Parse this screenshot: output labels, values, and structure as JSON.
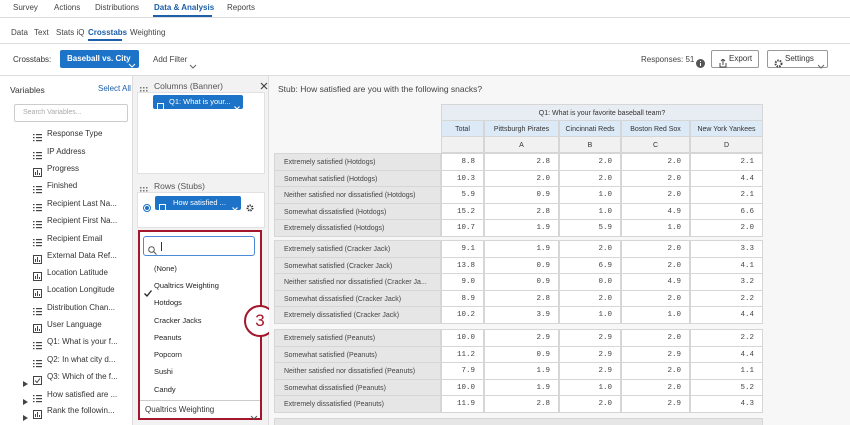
{
  "nav": {
    "tabs": [
      "Survey",
      "Actions",
      "Distributions",
      "Data & Analysis",
      "Reports"
    ]
  },
  "subnav": {
    "tabs": [
      "Data",
      "Text",
      "Stats iQ",
      "Crosstabs",
      "Weighting"
    ]
  },
  "toolbar": {
    "label": "Crosstabs:",
    "crosstab": "Baseball vs. City",
    "add_filter": "Add Filter",
    "responses": "Responses: 51",
    "export": "Export",
    "settings": "Settings"
  },
  "variables": {
    "title": "Variables",
    "select_all": "Select All",
    "search_placeholder": "Search Variables...",
    "items": [
      "Response Type",
      "IP Address",
      "Progress",
      "Finished",
      "Recipient Last Na...",
      "Recipient First Na...",
      "Recipient Email",
      "External Data Ref...",
      "Location Latitude",
      "Location Longitude",
      "Distribution Chan...",
      "User Language",
      "Q1: What is your f...",
      "Q2: In what city d...",
      "Q3: Which of the f...",
      "How satisfied are ...",
      "Rank the followin..."
    ]
  },
  "columns": {
    "title": "Columns (Banner)",
    "chip": "Q1: What is your..."
  },
  "rows": {
    "title": "Rows (Stubs)",
    "chip": "How satisfied ..."
  },
  "weight_dropdown": {
    "options": [
      "(None)",
      "Qualtrics Weighting",
      "Hotdogs",
      "Cracker Jacks",
      "Peanuts",
      "Popcorn",
      "Sushi",
      "Candy"
    ],
    "selected": "Qualtrics Weighting"
  },
  "step": "3",
  "table": {
    "stub": "Stub: How satisfied are you with the following snacks?",
    "banner": "Q1: What is your favorite baseball team?",
    "columns": [
      "Total",
      "Pittsburgh Pirates",
      "Cincinnati Reds",
      "Boston Red Sox",
      "New York Yankees"
    ],
    "letters": [
      "A",
      "B",
      "C",
      "D"
    ],
    "groups": [
      [
        {
          "label": "Extremely satisfied (Hotdogs)",
          "values": [
            "8.8",
            "2.8",
            "2.0",
            "2.0",
            "2.1"
          ]
        },
        {
          "label": "Somewhat satisfied (Hotdogs)",
          "values": [
            "10.3",
            "2.0",
            "2.0",
            "2.0",
            "4.4"
          ]
        },
        {
          "label": "Neither satisfied nor dissatisfied (Hotdogs)",
          "values": [
            "5.9",
            "0.9",
            "1.0",
            "2.0",
            "2.1"
          ]
        },
        {
          "label": "Somewhat dissatisfied (Hotdogs)",
          "values": [
            "15.2",
            "2.8",
            "1.0",
            "4.9",
            "6.6"
          ]
        },
        {
          "label": "Extremely dissatisfied (Hotdogs)",
          "values": [
            "10.7",
            "1.9",
            "5.9",
            "1.0",
            "2.0"
          ]
        }
      ],
      [
        {
          "label": "Extremely satisfied (Cracker Jack)",
          "values": [
            "9.1",
            "1.9",
            "2.0",
            "2.0",
            "3.3"
          ]
        },
        {
          "label": "Somewhat satisfied (Cracker Jack)",
          "values": [
            "13.8",
            "0.9",
            "6.9",
            "2.0",
            "4.1"
          ]
        },
        {
          "label": "Neither satisfied nor dissatisfied (Cracker Ja...",
          "values": [
            "9.0",
            "0.9",
            "0.0",
            "4.9",
            "3.2"
          ]
        },
        {
          "label": "Somewhat dissatisfied (Cracker Jack)",
          "values": [
            "8.9",
            "2.8",
            "2.0",
            "2.0",
            "2.2"
          ]
        },
        {
          "label": "Extremely dissatisfied (Cracker Jack)",
          "values": [
            "10.2",
            "3.9",
            "1.0",
            "1.0",
            "4.4"
          ]
        }
      ],
      [
        {
          "label": "Extremely satisfied (Peanuts)",
          "values": [
            "10.0",
            "2.9",
            "2.9",
            "2.0",
            "2.2"
          ]
        },
        {
          "label": "Somewhat satisfied (Peanuts)",
          "values": [
            "11.2",
            "0.9",
            "2.9",
            "2.9",
            "4.4"
          ]
        },
        {
          "label": "Neither satisfied nor dissatisfied (Peanuts)",
          "values": [
            "7.9",
            "1.9",
            "2.9",
            "2.0",
            "1.1"
          ]
        },
        {
          "label": "Somewhat dissatisfied (Peanuts)",
          "values": [
            "10.0",
            "1.9",
            "1.0",
            "2.0",
            "5.2"
          ]
        },
        {
          "label": "Extremely dissatisfied (Peanuts)",
          "values": [
            "11.9",
            "2.8",
            "2.0",
            "2.9",
            "4.3"
          ]
        }
      ]
    ]
  }
}
